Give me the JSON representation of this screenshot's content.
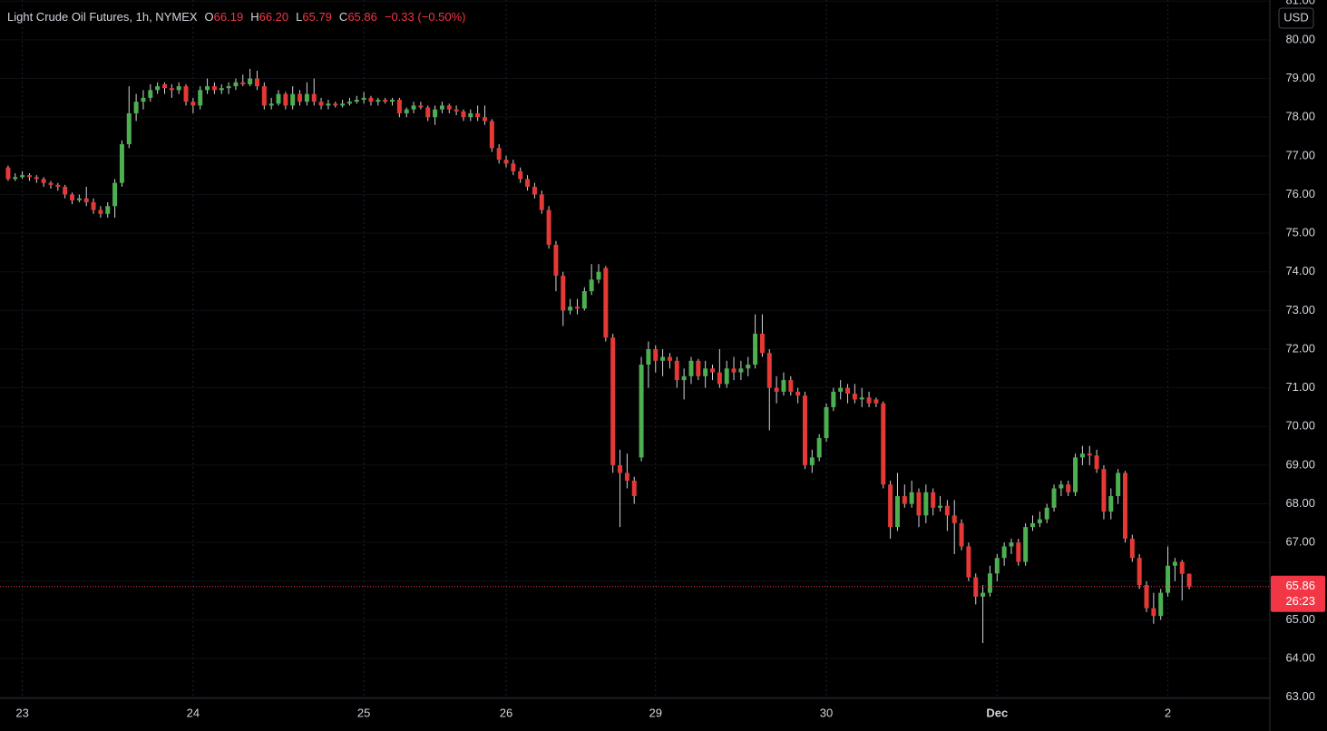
{
  "chart_data": {
    "type": "candlestick",
    "title": "Light Crude Oil Futures, 1h, NYMEX",
    "ohlc_legend": {
      "open_label": "O",
      "open": "66.19",
      "high_label": "H",
      "high": "66.20",
      "low_label": "L",
      "low": "65.79",
      "close_label": "C",
      "close": "65.86",
      "change": "−0.33 (−0.50%)"
    },
    "currency": "USD",
    "last_price": {
      "value": 65.86,
      "label": "65.86"
    },
    "countdown": "26:23",
    "up_color": "#4caf50",
    "down_color": "#e53935",
    "wick_color": "#d1d4dc",
    "last_price_color": "#f23645",
    "grid": true,
    "ylim": [
      62.97,
      81.03
    ],
    "yticks": [
      {
        "value": 63,
        "label": "63.00"
      },
      {
        "value": 64,
        "label": "64.00"
      },
      {
        "value": 65,
        "label": "65.00"
      },
      {
        "value": 66,
        "label": "66.00"
      },
      {
        "value": 67,
        "label": "67.00"
      },
      {
        "value": 68,
        "label": "68.00"
      },
      {
        "value": 69,
        "label": "69.00"
      },
      {
        "value": 70,
        "label": "70.00"
      },
      {
        "value": 71,
        "label": "71.00"
      },
      {
        "value": 72,
        "label": "72.00"
      },
      {
        "value": 73,
        "label": "73.00"
      },
      {
        "value": 74,
        "label": "74.00"
      },
      {
        "value": 75,
        "label": "75.00"
      },
      {
        "value": 76,
        "label": "76.00"
      },
      {
        "value": 77,
        "label": "77.00"
      },
      {
        "value": 78,
        "label": "78.00"
      },
      {
        "value": 79,
        "label": "79.00"
      },
      {
        "value": 80,
        "label": "80.00"
      },
      {
        "value": 81,
        "label": "81.00"
      }
    ],
    "categories": [
      null,
      null,
      "23",
      null,
      null,
      null,
      null,
      null,
      null,
      null,
      null,
      null,
      null,
      null,
      null,
      null,
      null,
      null,
      null,
      null,
      null,
      null,
      null,
      null,
      null,
      null,
      "24",
      null,
      null,
      null,
      null,
      null,
      null,
      null,
      null,
      null,
      null,
      null,
      null,
      null,
      null,
      null,
      null,
      null,
      null,
      null,
      null,
      null,
      null,
      null,
      "25",
      null,
      null,
      null,
      null,
      null,
      null,
      null,
      null,
      null,
      null,
      null,
      null,
      null,
      null,
      null,
      null,
      null,
      null,
      null,
      "26",
      null,
      null,
      null,
      null,
      null,
      null,
      null,
      null,
      null,
      null,
      null,
      null,
      null,
      null,
      null,
      null,
      null,
      null,
      null,
      null,
      "29",
      null,
      null,
      null,
      null,
      null,
      null,
      null,
      null,
      null,
      null,
      null,
      null,
      null,
      null,
      null,
      null,
      null,
      null,
      null,
      null,
      null,
      null,
      null,
      "30",
      null,
      null,
      null,
      null,
      null,
      null,
      null,
      null,
      null,
      null,
      null,
      null,
      null,
      null,
      null,
      null,
      null,
      null,
      null,
      null,
      null,
      null,
      null,
      "Dec",
      null,
      null,
      null,
      null,
      null,
      null,
      null,
      null,
      null,
      null,
      null,
      null,
      null,
      null,
      null,
      null,
      null,
      null,
      null,
      null,
      null,
      null,
      null,
      "2",
      null,
      null
    ],
    "ohlc": [
      [
        76.7,
        76.75,
        76.35,
        76.4
      ],
      [
        76.4,
        76.55,
        76.35,
        76.45
      ],
      [
        76.45,
        76.6,
        76.4,
        76.5
      ],
      [
        76.5,
        76.55,
        76.35,
        76.45
      ],
      [
        76.45,
        76.5,
        76.3,
        76.4
      ],
      [
        76.4,
        76.45,
        76.2,
        76.3
      ],
      [
        76.3,
        76.35,
        76.15,
        76.25
      ],
      [
        76.25,
        76.3,
        76.1,
        76.2
      ],
      [
        76.2,
        76.25,
        75.9,
        76.0
      ],
      [
        76.0,
        76.05,
        75.75,
        75.85
      ],
      [
        75.85,
        76.0,
        75.8,
        75.9
      ],
      [
        75.9,
        76.2,
        75.7,
        75.8
      ],
      [
        75.8,
        75.9,
        75.5,
        75.6
      ],
      [
        75.6,
        75.7,
        75.4,
        75.5
      ],
      [
        75.5,
        75.8,
        75.4,
        75.7
      ],
      [
        75.7,
        76.4,
        75.4,
        76.3
      ],
      [
        76.3,
        77.4,
        76.2,
        77.3
      ],
      [
        77.3,
        78.8,
        77.2,
        78.1
      ],
      [
        78.1,
        78.6,
        77.9,
        78.4
      ],
      [
        78.4,
        78.7,
        78.2,
        78.5
      ],
      [
        78.5,
        78.85,
        78.4,
        78.7
      ],
      [
        78.7,
        78.9,
        78.6,
        78.8
      ],
      [
        78.85,
        78.9,
        78.6,
        78.75
      ],
      [
        78.75,
        78.85,
        78.5,
        78.7
      ],
      [
        78.7,
        78.9,
        78.6,
        78.8
      ],
      [
        78.8,
        78.85,
        78.3,
        78.4
      ],
      [
        78.4,
        78.5,
        78.1,
        78.3
      ],
      [
        78.3,
        78.8,
        78.2,
        78.7
      ],
      [
        78.7,
        79.0,
        78.6,
        78.8
      ],
      [
        78.8,
        78.9,
        78.6,
        78.7
      ],
      [
        78.7,
        78.85,
        78.6,
        78.75
      ],
      [
        78.75,
        78.9,
        78.6,
        78.8
      ],
      [
        78.8,
        79.0,
        78.7,
        78.9
      ],
      [
        78.9,
        79.1,
        78.8,
        78.85
      ],
      [
        78.85,
        79.25,
        78.8,
        79.0
      ],
      [
        79.0,
        79.2,
        78.7,
        78.8
      ],
      [
        78.8,
        78.9,
        78.2,
        78.3
      ],
      [
        78.3,
        78.5,
        78.2,
        78.35
      ],
      [
        78.35,
        78.7,
        78.3,
        78.6
      ],
      [
        78.6,
        78.65,
        78.2,
        78.3
      ],
      [
        78.3,
        78.8,
        78.2,
        78.6
      ],
      [
        78.6,
        78.7,
        78.3,
        78.4
      ],
      [
        78.4,
        78.9,
        78.3,
        78.6
      ],
      [
        78.6,
        79.0,
        78.3,
        78.4
      ],
      [
        78.4,
        78.5,
        78.2,
        78.3
      ],
      [
        78.3,
        78.45,
        78.2,
        78.35
      ],
      [
        78.35,
        78.4,
        78.25,
        78.3
      ],
      [
        78.3,
        78.45,
        78.25,
        78.35
      ],
      [
        78.35,
        78.5,
        78.3,
        78.4
      ],
      [
        78.4,
        78.55,
        78.35,
        78.45
      ],
      [
        78.45,
        78.65,
        78.35,
        78.5
      ],
      [
        78.5,
        78.55,
        78.3,
        78.4
      ],
      [
        78.4,
        78.5,
        78.3,
        78.45
      ],
      [
        78.45,
        78.5,
        78.35,
        78.4
      ],
      [
        78.4,
        78.5,
        78.3,
        78.45
      ],
      [
        78.45,
        78.5,
        78.0,
        78.1
      ],
      [
        78.1,
        78.25,
        78.0,
        78.2
      ],
      [
        78.2,
        78.4,
        78.1,
        78.3
      ],
      [
        78.3,
        78.4,
        78.2,
        78.25
      ],
      [
        78.25,
        78.3,
        77.9,
        78.0
      ],
      [
        78.0,
        78.3,
        77.8,
        78.2
      ],
      [
        78.2,
        78.4,
        78.1,
        78.3
      ],
      [
        78.3,
        78.35,
        78.1,
        78.2
      ],
      [
        78.2,
        78.3,
        78.05,
        78.15
      ],
      [
        78.15,
        78.2,
        77.9,
        78.0
      ],
      [
        78.0,
        78.2,
        77.9,
        78.1
      ],
      [
        78.1,
        78.3,
        77.9,
        78.0
      ],
      [
        78.0,
        78.3,
        77.8,
        77.9
      ],
      [
        77.9,
        77.95,
        77.1,
        77.2
      ],
      [
        77.2,
        77.3,
        76.8,
        76.9
      ],
      [
        76.9,
        77.0,
        76.7,
        76.8
      ],
      [
        76.8,
        76.9,
        76.5,
        76.6
      ],
      [
        76.6,
        76.7,
        76.3,
        76.4
      ],
      [
        76.4,
        76.5,
        76.1,
        76.2
      ],
      [
        76.2,
        76.3,
        75.9,
        76.0
      ],
      [
        76.0,
        76.1,
        75.5,
        75.6
      ],
      [
        75.6,
        75.7,
        74.6,
        74.7
      ],
      [
        74.7,
        74.8,
        73.5,
        73.9
      ],
      [
        73.9,
        74.0,
        72.6,
        73.0
      ],
      [
        73.0,
        73.3,
        72.9,
        73.1
      ],
      [
        73.1,
        73.3,
        72.9,
        73.05
      ],
      [
        73.05,
        73.6,
        73.0,
        73.5
      ],
      [
        73.5,
        74.2,
        73.4,
        73.8
      ],
      [
        73.8,
        74.2,
        73.7,
        74.0
      ],
      [
        74.1,
        74.15,
        72.2,
        72.3
      ],
      [
        72.3,
        72.4,
        68.8,
        69.0
      ],
      [
        69.0,
        69.4,
        67.4,
        68.8
      ],
      [
        68.8,
        69.3,
        68.4,
        68.6
      ],
      [
        68.6,
        68.7,
        68.0,
        68.2
      ],
      [
        69.2,
        71.8,
        69.1,
        71.6
      ],
      [
        71.6,
        72.2,
        71.0,
        72.0
      ],
      [
        72.0,
        72.1,
        71.4,
        71.7
      ],
      [
        71.7,
        72.0,
        71.3,
        71.8
      ],
      [
        71.8,
        71.9,
        71.5,
        71.7
      ],
      [
        71.7,
        71.8,
        71.0,
        71.2
      ],
      [
        71.2,
        71.5,
        70.7,
        71.3
      ],
      [
        71.3,
        71.8,
        71.1,
        71.7
      ],
      [
        71.7,
        71.75,
        71.2,
        71.3
      ],
      [
        71.3,
        71.7,
        71.0,
        71.5
      ],
      [
        71.5,
        71.6,
        71.2,
        71.4
      ],
      [
        71.4,
        72.0,
        71.0,
        71.1
      ],
      [
        71.1,
        71.7,
        71.0,
        71.5
      ],
      [
        71.5,
        71.8,
        71.2,
        71.4
      ],
      [
        71.4,
        71.7,
        71.2,
        71.5
      ],
      [
        71.5,
        71.8,
        71.3,
        71.6
      ],
      [
        71.6,
        72.9,
        71.5,
        72.4
      ],
      [
        72.4,
        72.9,
        71.8,
        71.9
      ],
      [
        71.9,
        72.0,
        69.9,
        71.0
      ],
      [
        71.0,
        71.3,
        70.6,
        70.9
      ],
      [
        70.9,
        71.4,
        70.8,
        71.2
      ],
      [
        71.2,
        71.3,
        70.8,
        70.9
      ],
      [
        70.9,
        71.0,
        70.6,
        70.8
      ],
      [
        70.8,
        70.9,
        68.9,
        69.0
      ],
      [
        69.0,
        69.4,
        68.8,
        69.2
      ],
      [
        69.2,
        69.8,
        69.1,
        69.7
      ],
      [
        69.7,
        70.6,
        69.6,
        70.5
      ],
      [
        70.5,
        71.0,
        70.4,
        70.9
      ],
      [
        70.9,
        71.2,
        70.7,
        71.0
      ],
      [
        71.0,
        71.1,
        70.6,
        70.85
      ],
      [
        70.85,
        71.1,
        70.6,
        70.7
      ],
      [
        70.7,
        71.0,
        70.5,
        70.75
      ],
      [
        70.75,
        70.9,
        70.5,
        70.6
      ],
      [
        70.7,
        70.75,
        70.5,
        70.6
      ],
      [
        70.6,
        70.65,
        68.4,
        68.5
      ],
      [
        68.5,
        68.6,
        67.1,
        67.4
      ],
      [
        67.4,
        68.8,
        67.3,
        68.2
      ],
      [
        68.2,
        68.5,
        67.9,
        68.0
      ],
      [
        68.0,
        68.6,
        67.9,
        68.3
      ],
      [
        68.3,
        68.4,
        67.4,
        67.7
      ],
      [
        67.7,
        68.5,
        67.5,
        68.3
      ],
      [
        68.3,
        68.4,
        67.7,
        67.9
      ],
      [
        67.9,
        68.2,
        67.8,
        67.95
      ],
      [
        67.95,
        68.1,
        67.3,
        67.7
      ],
      [
        67.7,
        68.1,
        66.7,
        67.5
      ],
      [
        67.5,
        67.6,
        66.8,
        66.9
      ],
      [
        66.9,
        67.0,
        66.0,
        66.1
      ],
      [
        66.1,
        66.2,
        65.4,
        65.6
      ],
      [
        65.6,
        65.9,
        64.4,
        65.7
      ],
      [
        65.7,
        66.4,
        65.6,
        66.2
      ],
      [
        66.2,
        66.7,
        66.0,
        66.6
      ],
      [
        66.6,
        67.0,
        66.4,
        66.9
      ],
      [
        66.9,
        67.1,
        66.7,
        67.0
      ],
      [
        67.0,
        67.1,
        66.4,
        66.5
      ],
      [
        66.5,
        67.5,
        66.4,
        67.4
      ],
      [
        67.4,
        67.7,
        67.3,
        67.5
      ],
      [
        67.5,
        67.8,
        67.4,
        67.6
      ],
      [
        67.6,
        68.0,
        67.5,
        67.9
      ],
      [
        67.9,
        68.5,
        67.8,
        68.4
      ],
      [
        68.4,
        68.6,
        68.2,
        68.5
      ],
      [
        68.5,
        68.6,
        68.2,
        68.3
      ],
      [
        68.3,
        69.3,
        68.2,
        69.2
      ],
      [
        69.2,
        69.5,
        69.0,
        69.3
      ],
      [
        69.3,
        69.5,
        69.0,
        69.25
      ],
      [
        69.25,
        69.4,
        68.8,
        68.9
      ],
      [
        68.9,
        69.0,
        67.6,
        67.8
      ],
      [
        67.8,
        68.4,
        67.6,
        68.2
      ],
      [
        68.2,
        68.9,
        68.0,
        68.8
      ],
      [
        68.8,
        68.85,
        67.0,
        67.1
      ],
      [
        67.1,
        67.2,
        66.5,
        66.6
      ],
      [
        66.6,
        66.7,
        65.8,
        65.9
      ],
      [
        65.9,
        66.0,
        65.2,
        65.3
      ],
      [
        65.3,
        65.7,
        64.9,
        65.1
      ],
      [
        65.1,
        65.8,
        65.0,
        65.7
      ],
      [
        65.7,
        66.9,
        65.6,
        66.4
      ],
      [
        66.4,
        66.6,
        66.0,
        66.5
      ],
      [
        66.5,
        66.55,
        65.5,
        66.19
      ],
      [
        66.19,
        66.2,
        65.79,
        65.86
      ]
    ]
  }
}
